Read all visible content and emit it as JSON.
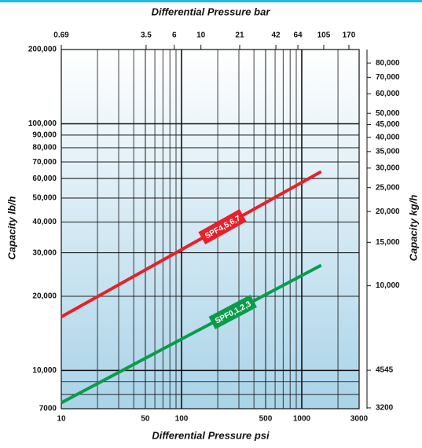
{
  "chart_data": {
    "type": "line",
    "x_label": "Differential Pressure psi",
    "x2_label": "Differential Pressure bar",
    "y_label": "Capacity lb/h",
    "y2_label": "Capacity kg/h",
    "xscale": "log",
    "yscale": "log",
    "xlim": [
      10,
      3000
    ],
    "xticks": [
      10,
      50,
      100,
      500,
      1000,
      3000
    ],
    "x2lim": [
      0.69,
      206.8
    ],
    "x2ticks": [
      0.69,
      3.5,
      6,
      10,
      21,
      42,
      64,
      105,
      170
    ],
    "ylim": [
      7000,
      200000
    ],
    "yticks": [
      {
        "value": 200000,
        "label": "200,000"
      },
      {
        "value": 100000,
        "label": "100,000"
      },
      {
        "value": 90000,
        "label": "90,000"
      },
      {
        "value": 80000,
        "label": "80,000"
      },
      {
        "value": 70000,
        "label": "70,000"
      },
      {
        "value": 60000,
        "label": "60,000"
      },
      {
        "value": 50000,
        "label": "50,000"
      },
      {
        "value": 40000,
        "label": "40,000"
      },
      {
        "value": 30000,
        "label": "30,000"
      },
      {
        "value": 20000,
        "label": "20,000"
      },
      {
        "value": 10000,
        "label": "10,000"
      },
      7000
    ],
    "y2lim": [
      3175,
      90718
    ],
    "y2ticks": [
      {
        "value": 80000,
        "label": "80,000"
      },
      {
        "value": 70000,
        "label": "70,000"
      },
      {
        "value": 60000,
        "label": "60,000"
      },
      {
        "value": 50000,
        "label": "50,000"
      },
      {
        "value": 45000,
        "label": "45,000"
      },
      {
        "value": 40000,
        "label": "40,000"
      },
      {
        "value": 35000,
        "label": "35,000"
      },
      {
        "value": 30000,
        "label": "30,000"
      },
      {
        "value": 25000,
        "label": "25,000"
      },
      {
        "value": 20000,
        "label": "20,000"
      },
      {
        "value": 15000,
        "label": "15,000"
      },
      {
        "value": 10000,
        "label": "10,000"
      },
      4545,
      3200
    ],
    "grid": true,
    "x": [
      10,
      1450
    ],
    "series": [
      {
        "name": "SPF4,5,6,7",
        "color": "#e8202a",
        "values": [
          16500,
          64000
        ]
      },
      {
        "name": "SPF0,1,2,3",
        "color": "#0a9c4a",
        "values": [
          7400,
          26700
        ]
      }
    ]
  }
}
